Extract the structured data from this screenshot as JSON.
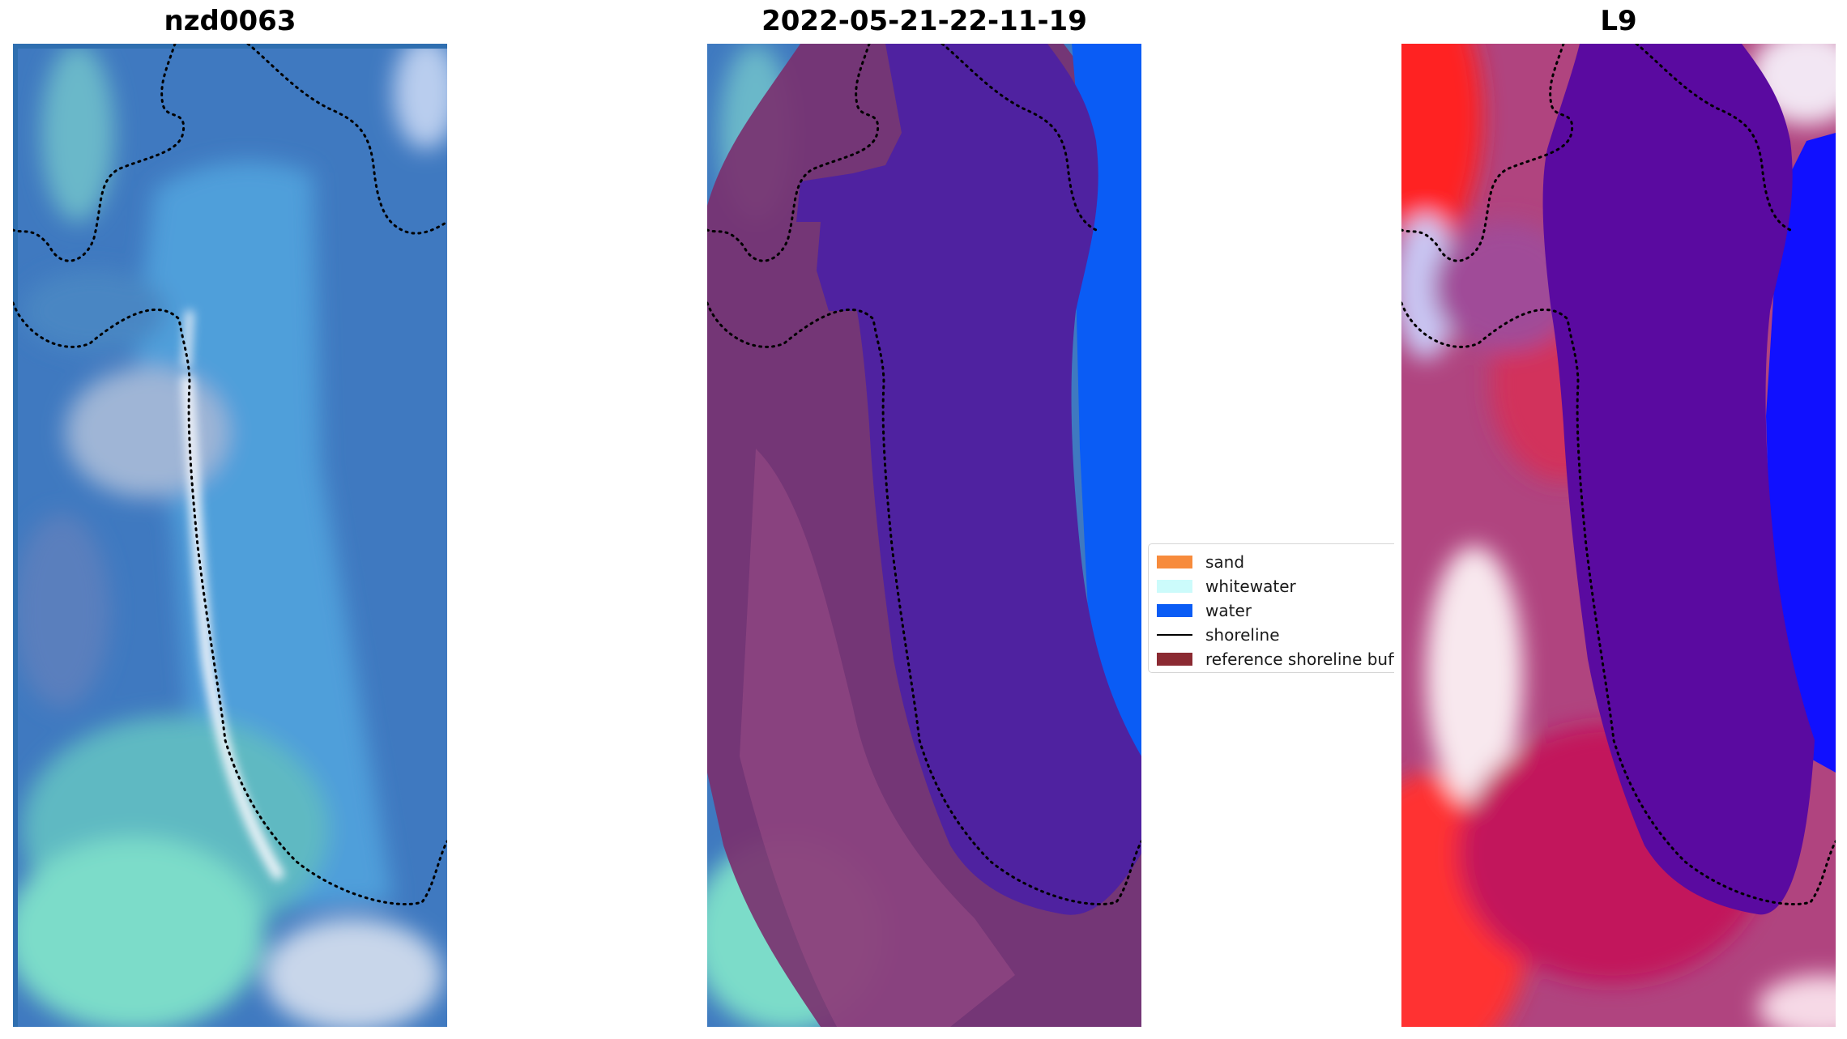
{
  "panels": [
    {
      "title": "nzd0063"
    },
    {
      "title": "2022-05-21-22-11-19"
    },
    {
      "title": "L9"
    }
  ],
  "legend": {
    "items": [
      {
        "label": "sand",
        "color": "#f78b3c",
        "kind": "patch"
      },
      {
        "label": "whitewater",
        "color": "#ccfbfb",
        "kind": "patch"
      },
      {
        "label": "water",
        "color": "#0a5cf5",
        "kind": "patch"
      },
      {
        "label": "shoreline",
        "color": "#000000",
        "kind": "line"
      },
      {
        "label": "reference shoreline buffer",
        "color": "#8b2a32",
        "kind": "patch"
      }
    ]
  },
  "colors": {
    "ocean_rgb": "#3f7fc4",
    "shallow_water": "#4fa3d8",
    "reef_cyan": "#7fe0cc",
    "beach_white": "#f2f4f8",
    "buffer_overlay": "#7a2f6e",
    "water_mask": "#0a5cf5",
    "inland_water_mask": "#4f22a0",
    "index_high_red": "#ff1a1a",
    "index_low_blue": "#1010ff",
    "index_deep_purple": "#5a0aa0",
    "index_mid_crimson": "#c2185b"
  }
}
